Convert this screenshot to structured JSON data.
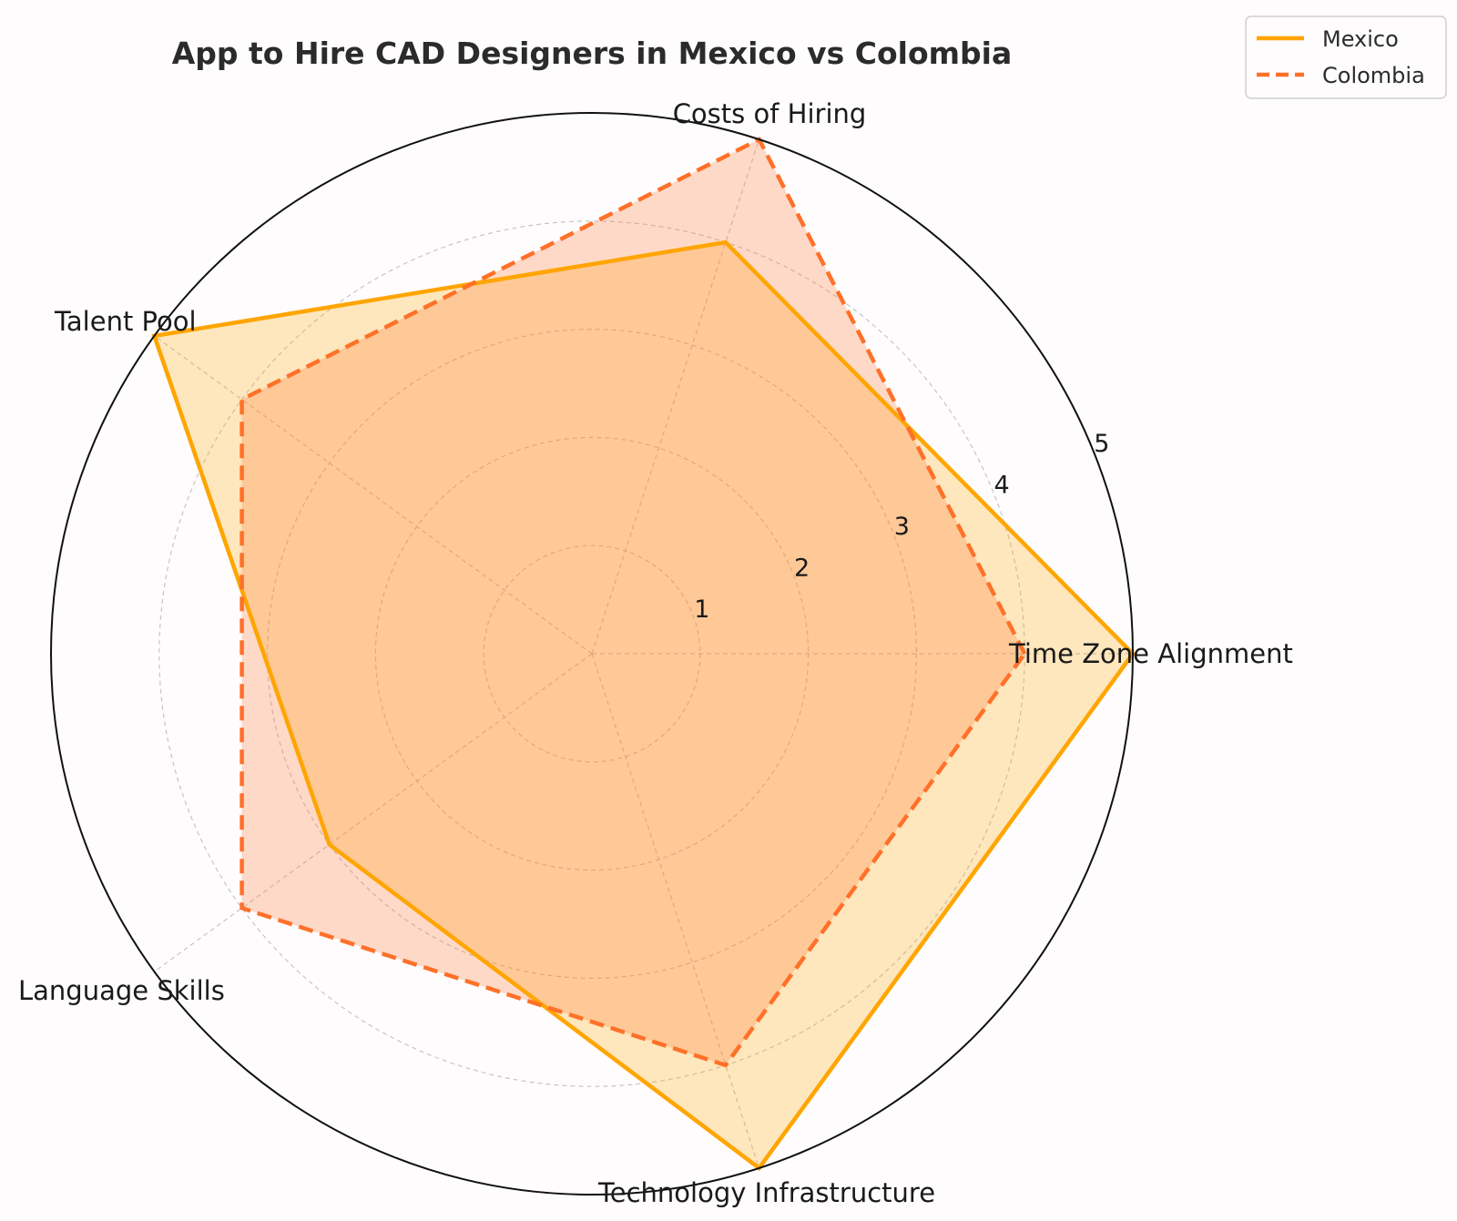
{
  "chart_data": {
    "type": "radar",
    "title": "App to Hire CAD Designers in Mexico vs Colombia",
    "categories": [
      "Time Zone Alignment",
      "Costs of Hiring",
      "Talent Pool",
      "Language Skills",
      "Technology Infrastructure"
    ],
    "series": [
      {
        "name": "Mexico",
        "values": [
          5,
          4,
          5,
          3,
          5
        ],
        "color": "#ffa500",
        "line_style": "solid"
      },
      {
        "name": "Colombia",
        "values": [
          4,
          5,
          4,
          4,
          4
        ],
        "color": "#ff7028",
        "line_style": "dashed"
      }
    ],
    "r_ticks": [
      1,
      2,
      3,
      4,
      5
    ],
    "rlim": [
      0,
      5
    ],
    "grid": true,
    "legend_position": "top-right"
  }
}
